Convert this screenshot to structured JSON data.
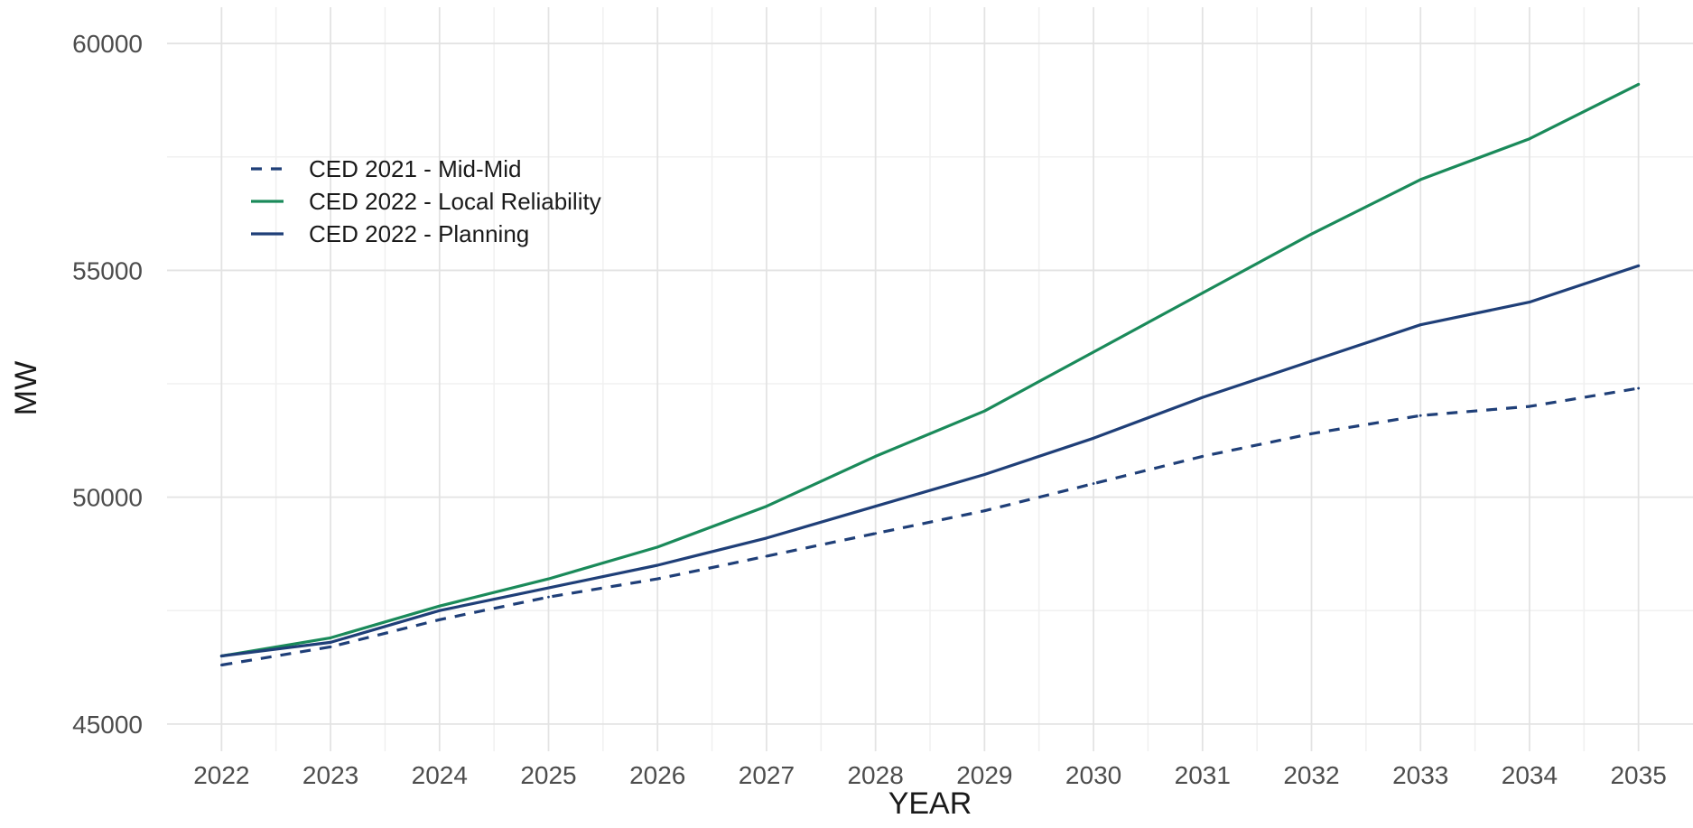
{
  "chart_data": {
    "type": "line",
    "xlabel": "YEAR",
    "ylabel": "MW",
    "xlim": [
      2021.5,
      2035.5
    ],
    "ylim": [
      44400,
      60800
    ],
    "x": [
      2022,
      2023,
      2024,
      2025,
      2026,
      2027,
      2028,
      2029,
      2030,
      2031,
      2032,
      2033,
      2034,
      2035
    ],
    "x_ticks": [
      "2022",
      "2023",
      "2024",
      "2025",
      "2026",
      "2027",
      "2028",
      "2029",
      "2030",
      "2031",
      "2032",
      "2033",
      "2034",
      "2035"
    ],
    "y_ticks": [
      "45000",
      "50000",
      "55000",
      "60000"
    ],
    "y_tick_values": [
      45000,
      50000,
      55000,
      60000
    ],
    "grid": true,
    "legend_position": "top-left",
    "series": [
      {
        "name": "CED 2021 - Mid-Mid",
        "color": "#1f3f78",
        "line_style": "dashed",
        "values": [
          46300,
          46700,
          47300,
          47800,
          48200,
          48700,
          49200,
          49700,
          50300,
          50900,
          51400,
          51800,
          52000,
          52400
        ]
      },
      {
        "name": "CED 2022 - Local Reliability",
        "color": "#1a8a5a",
        "line_style": "solid",
        "values": [
          46500,
          46900,
          47600,
          48200,
          48900,
          49800,
          50900,
          51900,
          53200,
          54500,
          55800,
          57000,
          57900,
          59100
        ]
      },
      {
        "name": "CED 2022 - Planning",
        "color": "#1f3f78",
        "line_style": "solid",
        "values": [
          46500,
          46800,
          47500,
          48000,
          48500,
          49100,
          49800,
          50500,
          51300,
          52200,
          53000,
          53800,
          54300,
          55100
        ]
      }
    ]
  }
}
